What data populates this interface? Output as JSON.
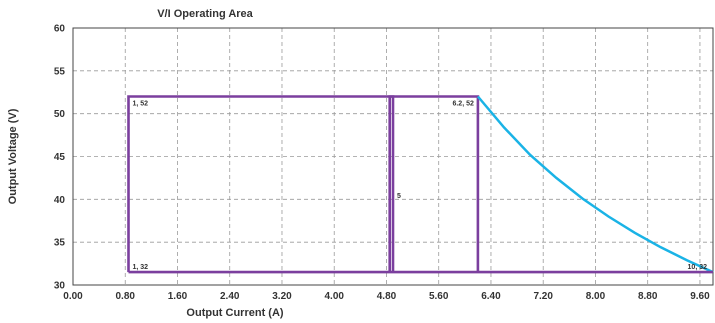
{
  "chart_data": {
    "type": "line",
    "title": "V/I Operating Area",
    "xlabel": "Output Current (A)",
    "ylabel": "Output Voltage (V)",
    "xlim": [
      0,
      9.8
    ],
    "ylim": [
      30,
      60
    ],
    "x_ticks": [
      "0.00",
      "0.80",
      "1.60",
      "2.40",
      "3.20",
      "4.00",
      "4.80",
      "5.60",
      "6.40",
      "7.20",
      "8.00",
      "8.80",
      "9.60"
    ],
    "y_ticks": [
      "30",
      "35",
      "40",
      "45",
      "50",
      "55",
      "60"
    ],
    "grid": true,
    "colors": {
      "rect": "#7b3f9e",
      "curve": "#1ab3e6"
    },
    "series": [
      {
        "style": "rect",
        "points": [
          [
            0.85,
            31.5
          ],
          [
            0.85,
            52
          ],
          [
            6.2,
            52
          ],
          [
            6.2,
            31.5
          ]
        ]
      },
      {
        "style": "rect",
        "points": [
          [
            4.85,
            31.5
          ],
          [
            4.85,
            52
          ],
          [
            4.9,
            52
          ],
          [
            4.9,
            31.5
          ]
        ]
      },
      {
        "style": "curve",
        "points": [
          [
            6.2,
            52
          ],
          [
            6.6,
            48.4
          ],
          [
            7.0,
            45.2
          ],
          [
            7.4,
            42.5
          ],
          [
            7.8,
            40.1
          ],
          [
            8.2,
            38.0
          ],
          [
            8.6,
            36.1
          ],
          [
            9.0,
            34.4
          ],
          [
            9.4,
            32.9
          ],
          [
            9.8,
            31.5
          ]
        ]
      },
      {
        "style": "rect",
        "points": [
          [
            0.85,
            31.5
          ],
          [
            9.8,
            31.5
          ]
        ]
      }
    ],
    "annotations": [
      {
        "text": "1, 52",
        "x": 0.85,
        "y": 52,
        "anchor": "inner-below-right"
      },
      {
        "text": "6.2, 52",
        "x": 6.2,
        "y": 52,
        "anchor": "inner-below-left"
      },
      {
        "text": "1, 32",
        "x": 0.85,
        "y": 31.5,
        "anchor": "inner-above-right"
      },
      {
        "text": "10, 32",
        "x": 9.8,
        "y": 31.5,
        "anchor": "inner-above-left"
      },
      {
        "text": "5",
        "x": 4.9,
        "y": 40.5,
        "anchor": "right"
      }
    ]
  }
}
